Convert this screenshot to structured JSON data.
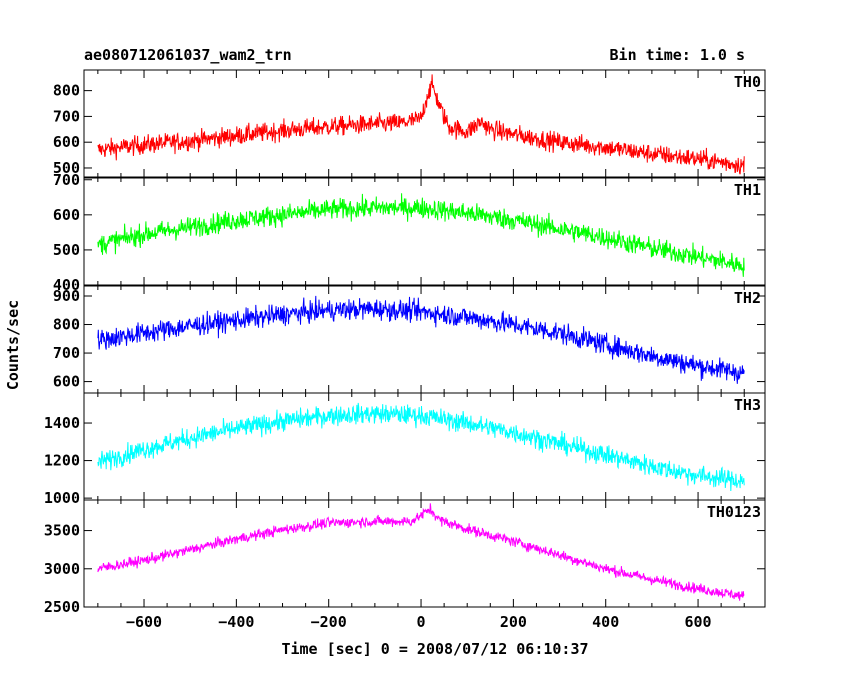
{
  "header": {
    "title": "ae080712061037_wam2_trn",
    "bin_time": "Bin time: 1.0 s"
  },
  "chart_data": {
    "type": "line",
    "xlabel": "Time [sec] 0 = 2008/07/12 06:10:37",
    "ylabel": "Counts/sec",
    "xlim": [
      -730,
      745
    ],
    "xticks": [
      -600,
      -400,
      -200,
      0,
      200,
      400,
      600
    ],
    "panels": [
      {
        "name": "TH0",
        "color": "#ff0000",
        "ylim": [
          465,
          880
        ],
        "yticks": [
          500,
          600,
          700,
          800
        ],
        "x": [
          -700,
          -600,
          -500,
          -400,
          -300,
          -200,
          -100,
          -40,
          0,
          15,
          25,
          40,
          60,
          100,
          130,
          150,
          200,
          300,
          400,
          500,
          600,
          700
        ],
        "y": [
          570,
          590,
          605,
          625,
          645,
          660,
          670,
          675,
          690,
          790,
          820,
          740,
          660,
          640,
          680,
          650,
          630,
          600,
          580,
          555,
          535,
          510
        ],
        "noise": 35
      },
      {
        "name": "TH1",
        "color": "#00ff00",
        "ylim": [
          400,
          705
        ],
        "yticks": [
          400,
          500,
          600,
          700
        ],
        "x": [
          -700,
          -600,
          -500,
          -400,
          -300,
          -200,
          -100,
          0,
          100,
          200,
          300,
          400,
          500,
          600,
          700
        ],
        "y": [
          515,
          545,
          565,
          585,
          600,
          615,
          620,
          620,
          605,
          585,
          560,
          535,
          505,
          480,
          455
        ],
        "noise": 28
      },
      {
        "name": "TH2",
        "color": "#0000ff",
        "ylim": [
          560,
          935
        ],
        "yticks": [
          600,
          700,
          800,
          900
        ],
        "x": [
          -700,
          -600,
          -500,
          -400,
          -300,
          -200,
          -100,
          0,
          100,
          200,
          300,
          400,
          500,
          600,
          700
        ],
        "y": [
          745,
          770,
          795,
          815,
          835,
          850,
          855,
          845,
          825,
          800,
          770,
          730,
          690,
          655,
          630
        ],
        "noise": 35
      },
      {
        "name": "TH3",
        "color": "#00ffff",
        "ylim": [
          990,
          1560
        ],
        "yticks": [
          1000,
          1200,
          1400
        ],
        "x": [
          -700,
          -600,
          -500,
          -400,
          -300,
          -200,
          -100,
          0,
          100,
          200,
          300,
          400,
          500,
          600,
          700
        ],
        "y": [
          1190,
          1260,
          1320,
          1370,
          1410,
          1440,
          1450,
          1440,
          1400,
          1350,
          1290,
          1230,
          1170,
          1120,
          1090
        ],
        "noise": 50
      },
      {
        "name": "TH0123",
        "color": "#ff00ff",
        "ylim": [
          2500,
          3900
        ],
        "yticks": [
          2500,
          3000,
          3500
        ],
        "x": [
          -700,
          -600,
          -500,
          -400,
          -300,
          -200,
          -100,
          -20,
          10,
          20,
          40,
          100,
          200,
          300,
          400,
          500,
          600,
          700
        ],
        "y": [
          3000,
          3110,
          3250,
          3390,
          3510,
          3600,
          3620,
          3620,
          3740,
          3780,
          3640,
          3520,
          3360,
          3180,
          3000,
          2860,
          2740,
          2640
        ],
        "noise": 65
      }
    ]
  }
}
